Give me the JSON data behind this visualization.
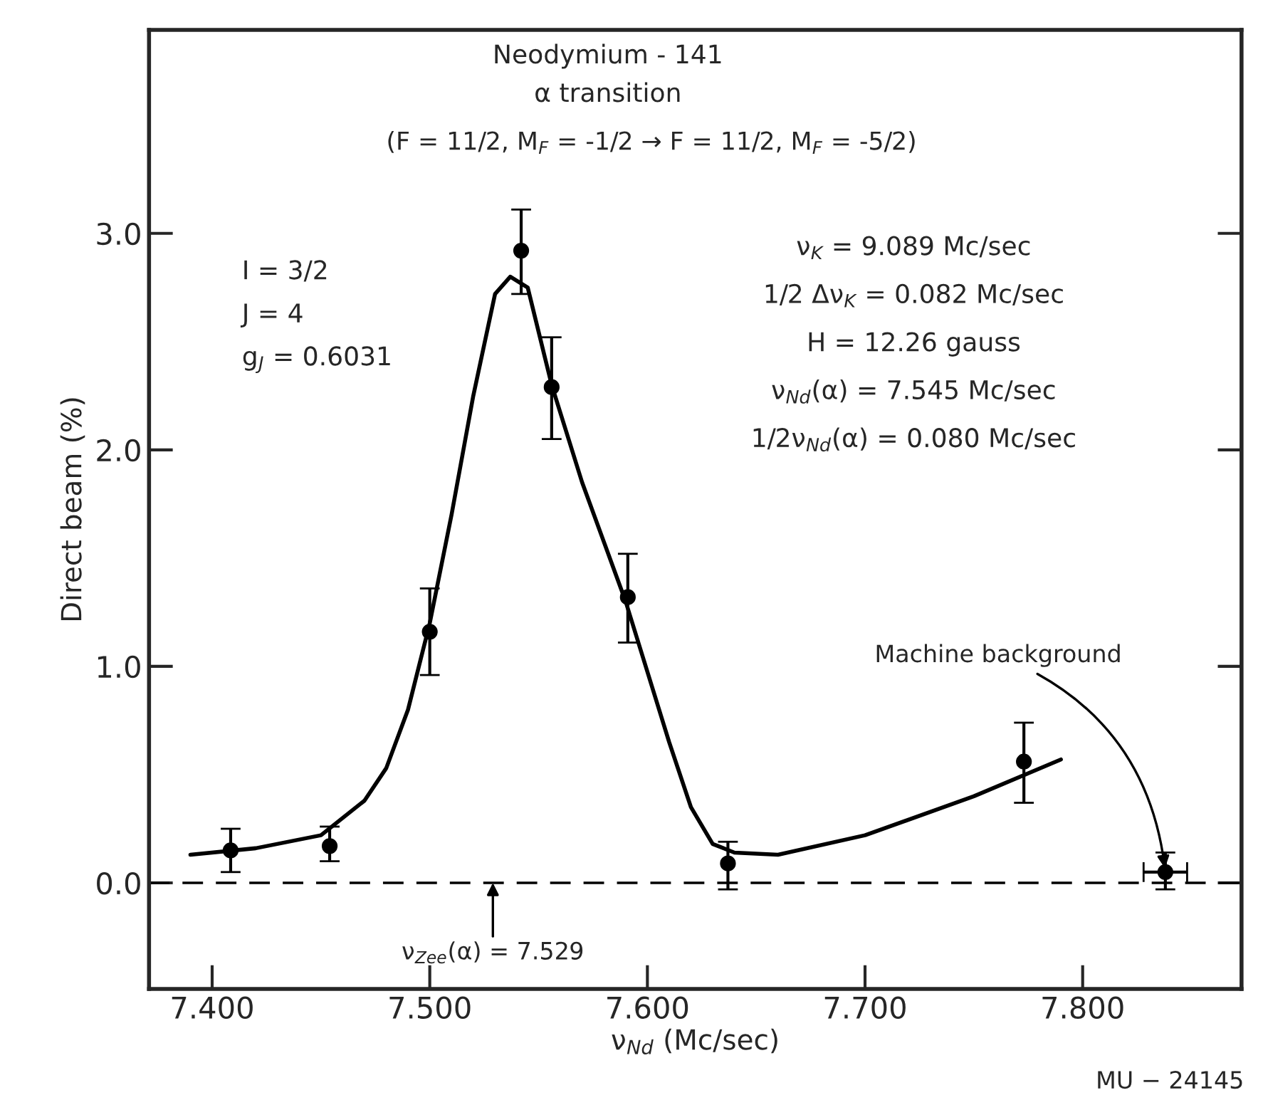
{
  "chart_data": {
    "type": "scatter",
    "title": "Neodymium - 141",
    "subtitle": "α transition",
    "xlabel": "ν$_{Nd}$ (Mc/sec)",
    "ylabel": "Direct beam (%)",
    "xlim": [
      7.371,
      7.873
    ],
    "ylim": [
      -0.49,
      3.94
    ],
    "xticks": [
      {
        "value": 7.4,
        "label": "7.400"
      },
      {
        "value": 7.5,
        "label": "7.500"
      },
      {
        "value": 7.6,
        "label": "7.600"
      },
      {
        "value": 7.7,
        "label": "7.700"
      },
      {
        "value": 7.8,
        "label": "7.800"
      }
    ],
    "yticks": [
      {
        "value": 0,
        "label": "0.0"
      },
      {
        "value": 1,
        "label": "1.0"
      },
      {
        "value": 2,
        "label": "2.0"
      },
      {
        "value": 3,
        "label": "3.0"
      }
    ],
    "grid": false,
    "legend": false,
    "series": [
      {
        "type": "line",
        "color": "#000000",
        "x": [
          7.39,
          7.42,
          7.45,
          7.47,
          7.48,
          7.49,
          7.5,
          7.51,
          7.52,
          7.53,
          7.537,
          7.545,
          7.556,
          7.57,
          7.59,
          7.61,
          7.62,
          7.63,
          7.64,
          7.66,
          7.7,
          7.75,
          7.79
        ],
        "values": [
          0.13,
          0.16,
          0.22,
          0.38,
          0.53,
          0.8,
          1.2,
          1.7,
          2.25,
          2.72,
          2.8,
          2.75,
          2.3,
          1.85,
          1.3,
          0.65,
          0.35,
          0.18,
          0.14,
          0.13,
          0.22,
          0.4,
          0.57
        ]
      },
      {
        "color": "#000000",
        "marker": "circle",
        "x": [
          7.4085,
          7.454,
          7.5,
          7.542,
          7.556,
          7.591,
          7.637,
          7.773,
          7.838
        ],
        "values": [
          0.15,
          0.17,
          1.16,
          2.92,
          2.29,
          1.32,
          0.09,
          0.56,
          0.05
        ],
        "errors": [
          [
            0.05,
            0.25
          ],
          [
            0.1,
            0.26
          ],
          [
            0.96,
            1.36
          ],
          [
            2.72,
            3.11
          ],
          [
            2.05,
            2.52
          ],
          [
            1.11,
            1.52
          ],
          [
            -0.03,
            0.19
          ],
          [
            0.37,
            0.74
          ],
          [
            -0.03,
            0.14
          ]
        ],
        "xerrors": [
          null,
          null,
          null,
          null,
          null,
          null,
          null,
          null,
          [
            7.828,
            7.848
          ]
        ]
      }
    ],
    "ref_lines": [
      {
        "axis": "y",
        "value": 0,
        "line_style": "dashed",
        "color": "#000000"
      }
    ],
    "annotations": [
      "(F = 11/2, M$_{F}$ = -1/2 → F = 11/2, M$_{F}$ = -5/2)",
      "I = 3/2",
      "J = 4",
      "g$_{J}$ = 0.6031",
      "ν$_{K}$ = 9.089 Mc/sec",
      "1/2 Δν$_{K}$ = 0.082 Mc/sec",
      "H = 12.26 gauss",
      "ν$_{Nd}$(α) = 7.545 Mc/sec",
      "1/2ν$_{Nd}$(α) = 0.080 Mc/sec",
      {
        "text": "ν$_{Zee}$(α) = 7.529",
        "x": 7.529,
        "y": 0
      },
      {
        "text": "Machine background",
        "x": 7.838,
        "y": 0.05
      },
      "MU − 24145"
    ]
  }
}
